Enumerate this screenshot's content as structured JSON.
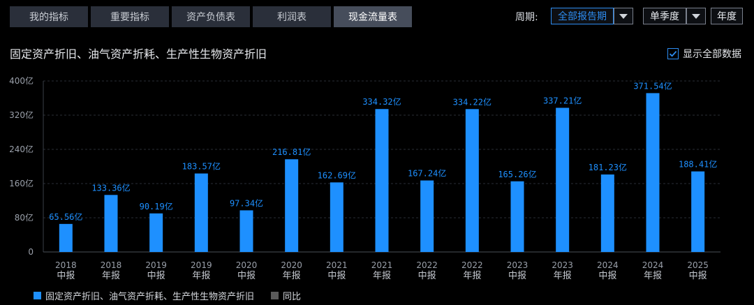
{
  "tabs": [
    {
      "label": "我的指标",
      "active": false
    },
    {
      "label": "重要指标",
      "active": false
    },
    {
      "label": "资产负债表",
      "active": false
    },
    {
      "label": "利润表",
      "active": false
    },
    {
      "label": "现金流量表",
      "active": true
    }
  ],
  "period": {
    "label": "周期:",
    "report_select": "全部报告期",
    "quarter_button": "单季度",
    "year_button": "年度"
  },
  "chart_title": "固定资产折旧、油气资产折耗、生产性生物资产折旧",
  "show_all": {
    "label": "显示全部数据",
    "checked": true
  },
  "legend": [
    {
      "label": "固定资产折旧、油气资产折耗、生产性生物资产折旧",
      "color": "#1e90ff"
    },
    {
      "label": "同比",
      "color": "#5a5a5a"
    }
  ],
  "colors": {
    "bar": "#1e90ff",
    "value_label": "#1e90ff",
    "axis_text": "#9aa0aa",
    "grid": "#2a2e36"
  },
  "chart_data": {
    "type": "bar",
    "title": "固定资产折旧、油气资产折耗、生产性生物资产折旧",
    "categories": [
      {
        "year": "2018",
        "period": "中报"
      },
      {
        "year": "2018",
        "period": "年报"
      },
      {
        "year": "2019",
        "period": "中报"
      },
      {
        "year": "2019",
        "period": "年报"
      },
      {
        "year": "2020",
        "period": "中报"
      },
      {
        "year": "2020",
        "period": "年报"
      },
      {
        "year": "2021",
        "period": "中报"
      },
      {
        "year": "2021",
        "period": "年报"
      },
      {
        "year": "2022",
        "period": "中报"
      },
      {
        "year": "2022",
        "period": "年报"
      },
      {
        "year": "2023",
        "period": "中报"
      },
      {
        "year": "2023",
        "period": "年报"
      },
      {
        "year": "2024",
        "period": "中报"
      },
      {
        "year": "2024",
        "period": "年报"
      },
      {
        "year": "2025",
        "period": "中报"
      }
    ],
    "values": [
      65.56,
      133.36,
      90.19,
      183.57,
      97.34,
      216.81,
      162.69,
      334.32,
      167.24,
      334.22,
      165.26,
      337.21,
      181.23,
      371.54,
      188.41
    ],
    "value_labels": [
      "65.56亿",
      "133.36亿",
      "90.19亿",
      "183.57亿",
      "97.34亿",
      "216.81亿",
      "162.69亿",
      "334.32亿",
      "167.24亿",
      "334.22亿",
      "165.26亿",
      "337.21亿",
      "181.23亿",
      "371.54亿",
      "188.41亿"
    ],
    "ylim": [
      0,
      400
    ],
    "yticks": [
      0,
      80,
      160,
      240,
      320,
      400
    ],
    "ytick_labels": [
      "0",
      "80亿",
      "160亿",
      "240亿",
      "320亿",
      "400亿"
    ],
    "grid": true,
    "legend_position": "bottom-left"
  }
}
